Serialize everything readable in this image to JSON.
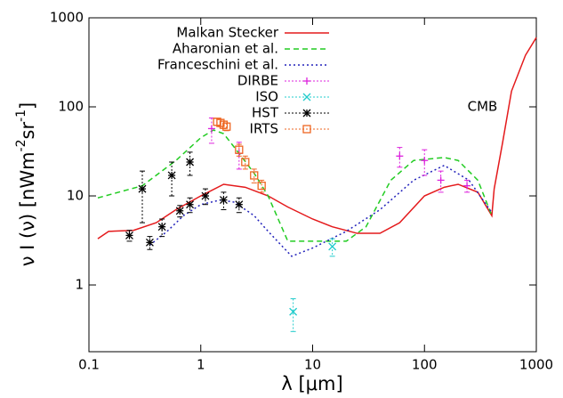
{
  "chart_data": {
    "type": "line",
    "xlabel": "λ [μm]",
    "ylabel_parts": [
      "ν I (ν) [nWm",
      "-2",
      "sr",
      "-1",
      "]"
    ],
    "annotations": [
      {
        "text": "CMB",
        "x": 330,
        "y": 100
      }
    ],
    "log_x": true,
    "log_y": true,
    "xlim": [
      0.1,
      1000
    ],
    "ylim": [
      0.178,
      1000
    ],
    "xticks": [
      0.1,
      1,
      10,
      100,
      1000
    ],
    "yticks": [
      1,
      10,
      100,
      1000
    ],
    "legend": "top-left",
    "series": [
      {
        "name": "Malkan Stecker",
        "color": "#e41a1c",
        "style": "solid",
        "x": [
          0.12,
          0.15,
          0.25,
          0.4,
          0.6,
          1,
          1.6,
          2.5,
          4,
          6,
          10,
          15,
          25,
          40,
          60,
          100,
          150,
          200,
          300,
          400,
          420,
          500,
          600,
          800,
          1000
        ],
        "values": [
          3.3,
          4,
          4.1,
          5,
          7,
          10,
          13.5,
          12.5,
          10,
          7.5,
          5.5,
          4.5,
          3.8,
          3.8,
          5,
          10,
          12.5,
          13.5,
          11,
          6,
          12,
          40,
          150,
          380,
          600
        ]
      },
      {
        "name": "Aharonian et al.",
        "color": "#22cc22",
        "style": "dashed",
        "x": [
          0.12,
          0.3,
          0.6,
          1,
          1.3,
          1.6,
          2,
          3,
          4,
          6,
          20,
          30,
          50,
          80,
          150,
          200,
          300,
          400
        ],
        "values": [
          9.5,
          13,
          25,
          45,
          55,
          50,
          35,
          18,
          10,
          3.1,
          3.1,
          4.5,
          15,
          25,
          27,
          25,
          15,
          6
        ]
      },
      {
        "name": "Franceschini et al.",
        "color": "#2222bb",
        "style": "dotted",
        "x": [
          0.35,
          0.5,
          0.7,
          1,
          1.5,
          2,
          3,
          4,
          6.5,
          10,
          20,
          40,
          80,
          150,
          250,
          400
        ],
        "values": [
          2.8,
          4,
          6,
          8,
          9,
          8.5,
          6,
          4,
          2.1,
          2.6,
          4,
          7,
          15,
          22,
          15,
          6.5
        ]
      },
      {
        "name": "DIRBE",
        "color": "#dd22dd",
        "style": "points",
        "marker": "plus",
        "x": [
          1.25,
          2.2,
          60,
          100,
          140,
          240
        ],
        "values": [
          57,
          30,
          28,
          25,
          15,
          13
        ],
        "errors": [
          18,
          10,
          7,
          8,
          4,
          2
        ]
      },
      {
        "name": "ISO",
        "color": "#22cccc",
        "style": "points",
        "marker": "cross",
        "x": [
          6.7,
          15
        ],
        "values": [
          0.5,
          2.7
        ],
        "errors": [
          0.2,
          0.6
        ]
      },
      {
        "name": "HST",
        "color": "#000000",
        "style": "points",
        "marker": "star",
        "x": [
          0.23,
          0.3,
          0.35,
          0.45,
          0.55,
          0.65,
          0.8,
          0.8,
          1.1,
          1.6,
          2.2
        ],
        "values": [
          3.6,
          12,
          3,
          4.5,
          17,
          6.8,
          24,
          8,
          10,
          9,
          8
        ],
        "errors": [
          0.5,
          7,
          0.5,
          1,
          7,
          1,
          7,
          1.5,
          2,
          2,
          1.5
        ]
      },
      {
        "name": "IRTS",
        "color": "#ee6622",
        "style": "points",
        "marker": "square",
        "x": [
          1.4,
          1.5,
          1.6,
          1.7,
          2.2,
          2.5,
          3,
          3.5
        ],
        "values": [
          68,
          66,
          63,
          60,
          33,
          24,
          17,
          13
        ],
        "errors": [
          6,
          6,
          6,
          6,
          5,
          4,
          3,
          2
        ]
      }
    ]
  }
}
